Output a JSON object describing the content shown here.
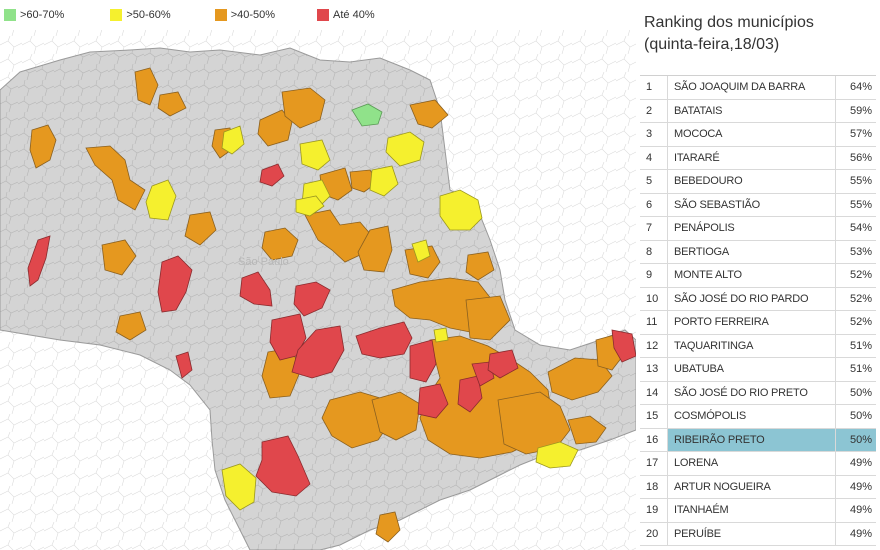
{
  "legend": [
    {
      "label": ">60-70%",
      "color": "#90e28a"
    },
    {
      "label": ">50-60%",
      "color": "#f5f02e"
    },
    {
      "label": ">40-50%",
      "color": "#e5981f"
    },
    {
      "label": "Até 40%",
      "color": "#e0474c"
    }
  ],
  "map": {
    "state_label": "São Paulo",
    "base_color": "#d4d4d4",
    "outline_color": "#ececec"
  },
  "ranking": {
    "title_line1": "Ranking dos municípios",
    "title_line2": "(quinta-feira,18/03)",
    "highlight_color": "#8cc5d3",
    "rows": [
      {
        "rank": "1",
        "name": "SÃO JOAQUIM DA BARRA",
        "pct": "64%"
      },
      {
        "rank": "2",
        "name": "BATATAIS",
        "pct": "59%"
      },
      {
        "rank": "3",
        "name": "MOCOCA",
        "pct": "57%"
      },
      {
        "rank": "4",
        "name": "ITARARÉ",
        "pct": "56%"
      },
      {
        "rank": "5",
        "name": "BEBEDOURO",
        "pct": "55%"
      },
      {
        "rank": "6",
        "name": "SÃO SEBASTIÃO",
        "pct": "55%"
      },
      {
        "rank": "7",
        "name": "PENÁPOLIS",
        "pct": "54%"
      },
      {
        "rank": "8",
        "name": "BERTIOGA",
        "pct": "53%"
      },
      {
        "rank": "9",
        "name": "MONTE ALTO",
        "pct": "52%"
      },
      {
        "rank": "10",
        "name": "SÃO JOSÉ DO RIO PARDO",
        "pct": "52%"
      },
      {
        "rank": "11",
        "name": "PORTO FERREIRA",
        "pct": "52%"
      },
      {
        "rank": "12",
        "name": "TAQUARITINGA",
        "pct": "51%"
      },
      {
        "rank": "13",
        "name": "UBATUBA",
        "pct": "51%"
      },
      {
        "rank": "14",
        "name": "SÃO JOSÉ DO RIO PRETO",
        "pct": "50%"
      },
      {
        "rank": "15",
        "name": "COSMÓPOLIS",
        "pct": "50%"
      },
      {
        "rank": "16",
        "name": "RIBEIRÃO PRETO",
        "pct": "50%",
        "highlight": true
      },
      {
        "rank": "17",
        "name": "LORENA",
        "pct": "49%"
      },
      {
        "rank": "18",
        "name": "ARTUR NOGUEIRA",
        "pct": "49%"
      },
      {
        "rank": "19",
        "name": "ITANHAÉM",
        "pct": "49%"
      },
      {
        "rank": "20",
        "name": "PERUÍBE",
        "pct": "49%"
      }
    ]
  }
}
